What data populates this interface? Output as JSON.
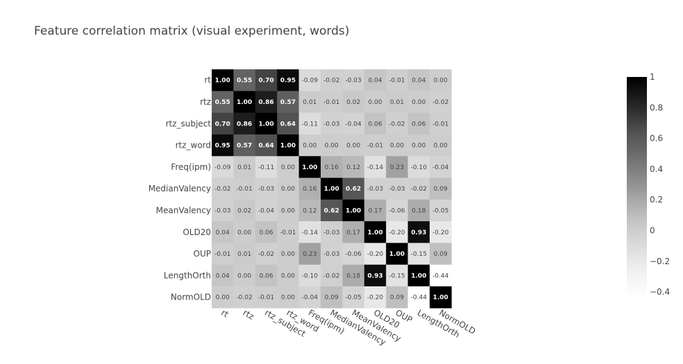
{
  "chart_data": {
    "type": "heatmap",
    "title": "Feature correlation matrix (visual experiment,  words)",
    "labels": [
      "rt",
      "rtz",
      "rtz_subject",
      "rtz_word",
      "Freq(ipm)",
      "MedianValency",
      "MeanValency",
      "OLD20",
      "OUP",
      "LengthOrth",
      "NormOLD"
    ],
    "values": [
      [
        1.0,
        0.55,
        0.7,
        0.95,
        -0.09,
        -0.02,
        -0.03,
        0.04,
        -0.01,
        0.04,
        0.0
      ],
      [
        0.55,
        1.0,
        0.86,
        0.57,
        0.01,
        -0.01,
        0.02,
        0.0,
        0.01,
        0.0,
        -0.02
      ],
      [
        0.7,
        0.86,
        1.0,
        0.64,
        -0.11,
        -0.03,
        -0.04,
        0.06,
        -0.02,
        0.06,
        -0.01
      ],
      [
        0.95,
        0.57,
        0.64,
        1.0,
        0.0,
        0.0,
        0.0,
        -0.01,
        0.0,
        0.0,
        0.0
      ],
      [
        -0.09,
        0.01,
        -0.11,
        0.0,
        1.0,
        0.16,
        0.12,
        -0.14,
        0.23,
        -0.1,
        -0.04
      ],
      [
        -0.02,
        -0.01,
        -0.03,
        0.0,
        0.16,
        1.0,
        0.62,
        -0.03,
        -0.03,
        -0.02,
        0.09
      ],
      [
        -0.03,
        0.02,
        -0.04,
        0.0,
        0.12,
        0.62,
        1.0,
        0.17,
        -0.06,
        0.18,
        -0.05
      ],
      [
        0.04,
        0.0,
        0.06,
        -0.01,
        -0.14,
        -0.03,
        0.17,
        1.0,
        -0.2,
        0.93,
        -0.2
      ],
      [
        -0.01,
        0.01,
        -0.02,
        0.0,
        0.23,
        -0.03,
        -0.06,
        -0.2,
        1.0,
        -0.15,
        0.09
      ],
      [
        0.04,
        0.0,
        0.06,
        0.0,
        -0.1,
        -0.02,
        0.18,
        0.93,
        -0.15,
        1.0,
        -0.44
      ],
      [
        0.0,
        -0.02,
        -0.01,
        0.0,
        -0.04,
        0.09,
        -0.05,
        -0.2,
        0.09,
        -0.44,
        1.0
      ]
    ],
    "zmin": -0.44,
    "zmax": 1.0,
    "colorscale": "greys",
    "colorbar": {
      "ticks": [
        1,
        0.8,
        0.6,
        0.4,
        0.2,
        0,
        -0.2,
        -0.4
      ],
      "tick_labels": [
        "1",
        "0.8",
        "0.6",
        "0.4",
        "0.2",
        "0",
        "−0.2",
        "−0.4"
      ]
    }
  }
}
